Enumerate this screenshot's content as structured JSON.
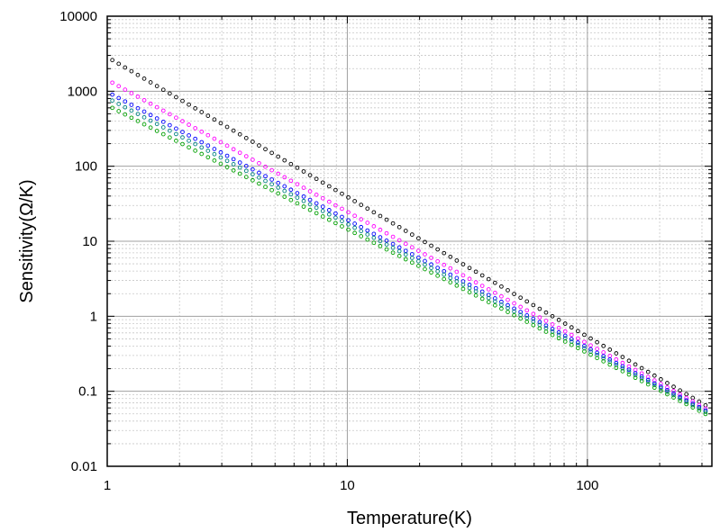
{
  "chart_data": {
    "type": "scatter",
    "title": "",
    "xlabel": "Temperature(K)",
    "ylabel": "Sensitivity(Ω/K)",
    "xscale": "log",
    "yscale": "log",
    "xlim": [
      1,
      330
    ],
    "ylim": [
      0.01,
      10000
    ],
    "grid": true,
    "legend": "none",
    "marker": "open-circle",
    "x_ticks": [
      {
        "value": 1,
        "label": "1"
      },
      {
        "value": 10,
        "label": "10"
      },
      {
        "value": 100,
        "label": "100"
      }
    ],
    "y_ticks": [
      {
        "value": 0.01,
        "label": "0.01"
      },
      {
        "value": 0.1,
        "label": "0.1"
      },
      {
        "value": 1,
        "label": "1"
      },
      {
        "value": 10,
        "label": "10"
      },
      {
        "value": 100,
        "label": "100"
      },
      {
        "value": 1000,
        "label": "1000"
      },
      {
        "value": 10000,
        "label": "10000"
      }
    ],
    "series": [
      {
        "color": "#000000",
        "x_range": [
          1.05,
          330
        ],
        "points": 95,
        "y_at_x_min": 2600,
        "y_at_x_max": 0.058
      },
      {
        "color": "#ff00ff",
        "x_range": [
          1.05,
          330
        ],
        "points": 95,
        "y_at_x_min": 1300,
        "y_at_x_max": 0.053
      },
      {
        "color": "#0000ff",
        "x_range": [
          1.05,
          330
        ],
        "points": 95,
        "y_at_x_min": 900,
        "y_at_x_max": 0.05
      },
      {
        "color": "#008080",
        "x_range": [
          1.05,
          330
        ],
        "points": 95,
        "y_at_x_min": 750,
        "y_at_x_max": 0.048
      },
      {
        "color": "#00a000",
        "x_range": [
          1.05,
          330
        ],
        "points": 95,
        "y_at_x_min": 600,
        "y_at_x_max": 0.045
      }
    ]
  }
}
